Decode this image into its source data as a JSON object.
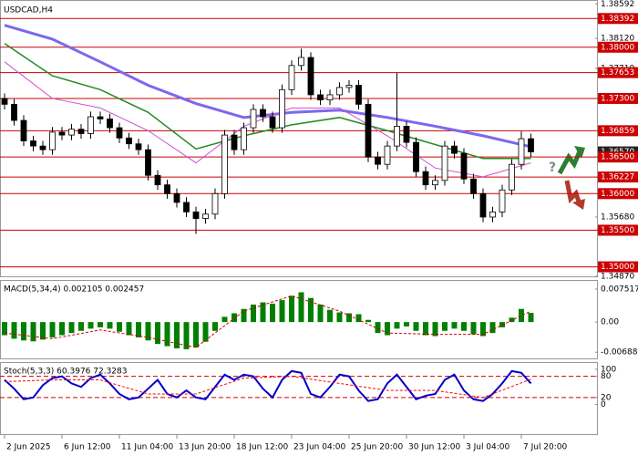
{
  "chart_data": [
    {
      "type": "candlestick",
      "title": "USDCAD,H4",
      "categories": [
        "2 Jun 2025",
        null,
        null,
        null,
        null,
        null,
        "6 Jun 12:00",
        null,
        null,
        null,
        null,
        null,
        "11 Jun 04:00",
        null,
        null,
        null,
        null,
        null,
        "13 Jun 20:00",
        null,
        null,
        null,
        null,
        null,
        "18 Jun 12:00",
        null,
        null,
        null,
        null,
        null,
        "23 Jun 04:00",
        null,
        null,
        null,
        null,
        null,
        "25 Jun 20:00",
        null,
        null,
        null,
        null,
        null,
        "30 Jun 12:00",
        null,
        null,
        null,
        null,
        null,
        "3 Jul 04:00",
        null,
        null,
        null,
        null,
        null,
        "7 Jul 20:00",
        null
      ],
      "open": [
        1.373,
        1.3722,
        1.37,
        1.3672,
        1.3665,
        1.366,
        1.3684,
        1.368,
        1.3688,
        1.3682,
        1.3705,
        1.3702,
        1.369,
        1.3676,
        1.3668,
        1.366,
        1.3625,
        1.3612,
        1.36,
        1.3588,
        1.3575,
        1.3566,
        1.3572,
        1.36,
        1.368,
        1.366,
        1.369,
        1.3715,
        1.3705,
        1.369,
        1.3742,
        1.3775,
        1.3786,
        1.3735,
        1.3728,
        1.3735,
        1.3745,
        1.3748,
        1.3722,
        1.365,
        1.364,
        1.3665,
        1.3692,
        1.367,
        1.363,
        1.3612,
        1.3618,
        1.3665,
        1.3655,
        1.362,
        1.36,
        1.3568,
        1.3575,
        1.3605,
        1.364,
        1.3675
      ],
      "high": [
        1.3737,
        1.3729,
        1.3707,
        1.3679,
        1.3672,
        1.3691,
        1.3691,
        1.3695,
        1.3695,
        1.3712,
        1.3712,
        1.3709,
        1.3697,
        1.3683,
        1.3675,
        1.3667,
        1.3632,
        1.3619,
        1.3607,
        1.3595,
        1.3582,
        1.3579,
        1.3607,
        1.3687,
        1.3687,
        1.3697,
        1.3722,
        1.3722,
        1.3712,
        1.3749,
        1.3782,
        1.3798,
        1.3793,
        1.3742,
        1.3742,
        1.3752,
        1.3755,
        1.3755,
        1.3729,
        1.3657,
        1.3672,
        1.3765,
        1.3699,
        1.3677,
        1.3637,
        1.3625,
        1.3672,
        1.3672,
        1.3662,
        1.3627,
        1.3607,
        1.3582,
        1.3612,
        1.3647,
        1.3685,
        1.3682
      ],
      "low": [
        1.3715,
        1.3693,
        1.3665,
        1.3658,
        1.3653,
        1.3653,
        1.3673,
        1.3673,
        1.3675,
        1.3675,
        1.3695,
        1.3683,
        1.3669,
        1.3661,
        1.3653,
        1.3618,
        1.3605,
        1.3593,
        1.3581,
        1.3568,
        1.3545,
        1.3559,
        1.3565,
        1.3593,
        1.3653,
        1.3653,
        1.3683,
        1.3698,
        1.3683,
        1.3683,
        1.3735,
        1.3768,
        1.3728,
        1.3721,
        1.3721,
        1.3728,
        1.3738,
        1.3715,
        1.3643,
        1.3633,
        1.3633,
        1.3658,
        1.3663,
        1.3623,
        1.3605,
        1.3605,
        1.3611,
        1.3648,
        1.3613,
        1.3593,
        1.3561,
        1.3561,
        1.3568,
        1.3598,
        1.3633,
        1.365
      ],
      "close": [
        1.3722,
        1.37,
        1.3672,
        1.3665,
        1.366,
        1.3684,
        1.368,
        1.3688,
        1.3682,
        1.3705,
        1.3702,
        1.369,
        1.3676,
        1.3668,
        1.366,
        1.3625,
        1.3612,
        1.36,
        1.3588,
        1.3575,
        1.3566,
        1.3572,
        1.36,
        1.368,
        1.366,
        1.369,
        1.3715,
        1.3705,
        1.369,
        1.3742,
        1.3775,
        1.3786,
        1.3735,
        1.3728,
        1.3735,
        1.3745,
        1.3748,
        1.3722,
        1.365,
        1.364,
        1.3665,
        1.3692,
        1.367,
        1.363,
        1.3612,
        1.3618,
        1.3665,
        1.3655,
        1.362,
        1.36,
        1.3568,
        1.3575,
        1.3605,
        1.364,
        1.3675,
        1.3657
      ],
      "series": [
        {
          "color": "#7b68ee",
          "x": [
            0,
            5,
            10,
            15,
            20,
            25,
            30,
            35,
            40,
            45,
            50,
            55
          ],
          "values": [
            1.383,
            1.3811,
            1.378,
            1.3748,
            1.3723,
            1.3704,
            1.3711,
            1.3714,
            1.3704,
            1.3692,
            1.3679,
            1.3664
          ]
        },
        {
          "color": "#228b22",
          "x": [
            0,
            5,
            10,
            15,
            20,
            25,
            30,
            35,
            40,
            45,
            50,
            55
          ],
          "values": [
            1.3805,
            1.3761,
            1.3742,
            1.3711,
            1.3661,
            1.3679,
            1.3694,
            1.3704,
            1.3686,
            1.3667,
            1.3648,
            1.3648
          ]
        },
        {
          "color": "#d050d0",
          "x": [
            0,
            5,
            10,
            15,
            20,
            25,
            30,
            35,
            40,
            45,
            50,
            55
          ],
          "values": [
            1.378,
            1.373,
            1.3717,
            1.3686,
            1.3642,
            1.3692,
            1.3717,
            1.3717,
            1.3679,
            1.3635,
            1.3623,
            1.3642
          ]
        }
      ],
      "ylim": [
        1.3487,
        1.3862
      ],
      "yticks": [
        1.38592,
        {
          "value": 1.3812,
          "label": "1.38120"
        },
        {
          "value": 1.3771,
          "label": "1.37710"
        },
        {
          "value": 1.3568,
          "label": "1.35680"
        },
        {
          "value": 1.3487,
          "label": "1.34870"
        }
      ],
      "levels": [
        1.38392,
        {
          "value": 1.38,
          "label": "1.38000"
        },
        1.37653,
        {
          "value": 1.373,
          "label": "1.37300"
        },
        1.36859,
        {
          "value": 1.365,
          "label": "1.36500"
        },
        1.36227,
        {
          "value": 1.36,
          "label": "1.36000"
        },
        {
          "value": 1.355,
          "label": "1.35500"
        },
        {
          "value": 1.35,
          "label": "1.35000"
        }
      ],
      "level_color": "#cc0000",
      "current_price": {
        "value": 1.3657,
        "label": "1.36570"
      },
      "annotation": "?"
    },
    {
      "type": "bar",
      "title": "MACD(5,34,4) 0.002105 0.002457",
      "color": "#008000",
      "values": [
        -0.003,
        -0.0038,
        -0.0042,
        -0.0044,
        -0.004,
        -0.0035,
        -0.003,
        -0.0025,
        -0.002,
        -0.0015,
        -0.0012,
        -0.0015,
        -0.0022,
        -0.003,
        -0.0035,
        -0.0042,
        -0.005,
        -0.0055,
        -0.006,
        -0.0062,
        -0.0058,
        -0.0045,
        -0.002,
        0.0012,
        0.002,
        0.003,
        0.004,
        0.0045,
        0.0042,
        0.005,
        0.006,
        0.0068,
        0.0055,
        0.004,
        0.0028,
        0.0022,
        0.002,
        0.0018,
        0.0005,
        -0.0025,
        -0.003,
        -0.0015,
        -0.001,
        -0.002,
        -0.003,
        -0.0032,
        -0.002,
        -0.0015,
        -0.002,
        -0.0028,
        -0.0032,
        -0.0025,
        -0.0012,
        0.001,
        0.003,
        0.0021
      ],
      "series": [
        {
          "color": "#cc0000",
          "dashed": true,
          "x": [
            0,
            5,
            10,
            15,
            20,
            25,
            30,
            35,
            40,
            45,
            50,
            55
          ],
          "values": [
            -0.0025,
            -0.0038,
            -0.0018,
            -0.0035,
            -0.0058,
            0.0025,
            0.006,
            0.0025,
            -0.0025,
            -0.0028,
            -0.0028,
            0.0025
          ]
        }
      ],
      "ylim": [
        -0.0083,
        0.0094
      ],
      "yticks": [
        0.007517,
        {
          "value": 0,
          "label": "0.00"
        },
        -0.006884
      ]
    },
    {
      "type": "line",
      "title": "Stoch(5,3,3) 60.3976 72.3283",
      "series": [
        {
          "color": "#0000cc",
          "values": [
            70,
            45,
            15,
            20,
            55,
            75,
            80,
            60,
            50,
            75,
            85,
            60,
            30,
            15,
            20,
            45,
            70,
            30,
            20,
            40,
            20,
            15,
            50,
            85,
            70,
            85,
            80,
            45,
            20,
            70,
            95,
            90,
            30,
            20,
            50,
            85,
            80,
            40,
            10,
            15,
            60,
            85,
            50,
            15,
            25,
            30,
            70,
            85,
            40,
            15,
            10,
            30,
            60,
            95,
            90,
            60
          ]
        },
        {
          "color": "#ff0000",
          "dashed": true,
          "x": [
            0,
            5,
            10,
            15,
            20,
            25,
            30,
            35,
            40,
            45,
            50,
            55
          ],
          "values": [
            65,
            70,
            70,
            30,
            30,
            75,
            80,
            60,
            40,
            40,
            20,
            72
          ]
        }
      ],
      "levels": [
        80,
        20
      ],
      "level_color": "#cc0000",
      "ylim": [
        -84,
        118
      ],
      "yticks": [
        100,
        80,
        20,
        0
      ]
    }
  ]
}
